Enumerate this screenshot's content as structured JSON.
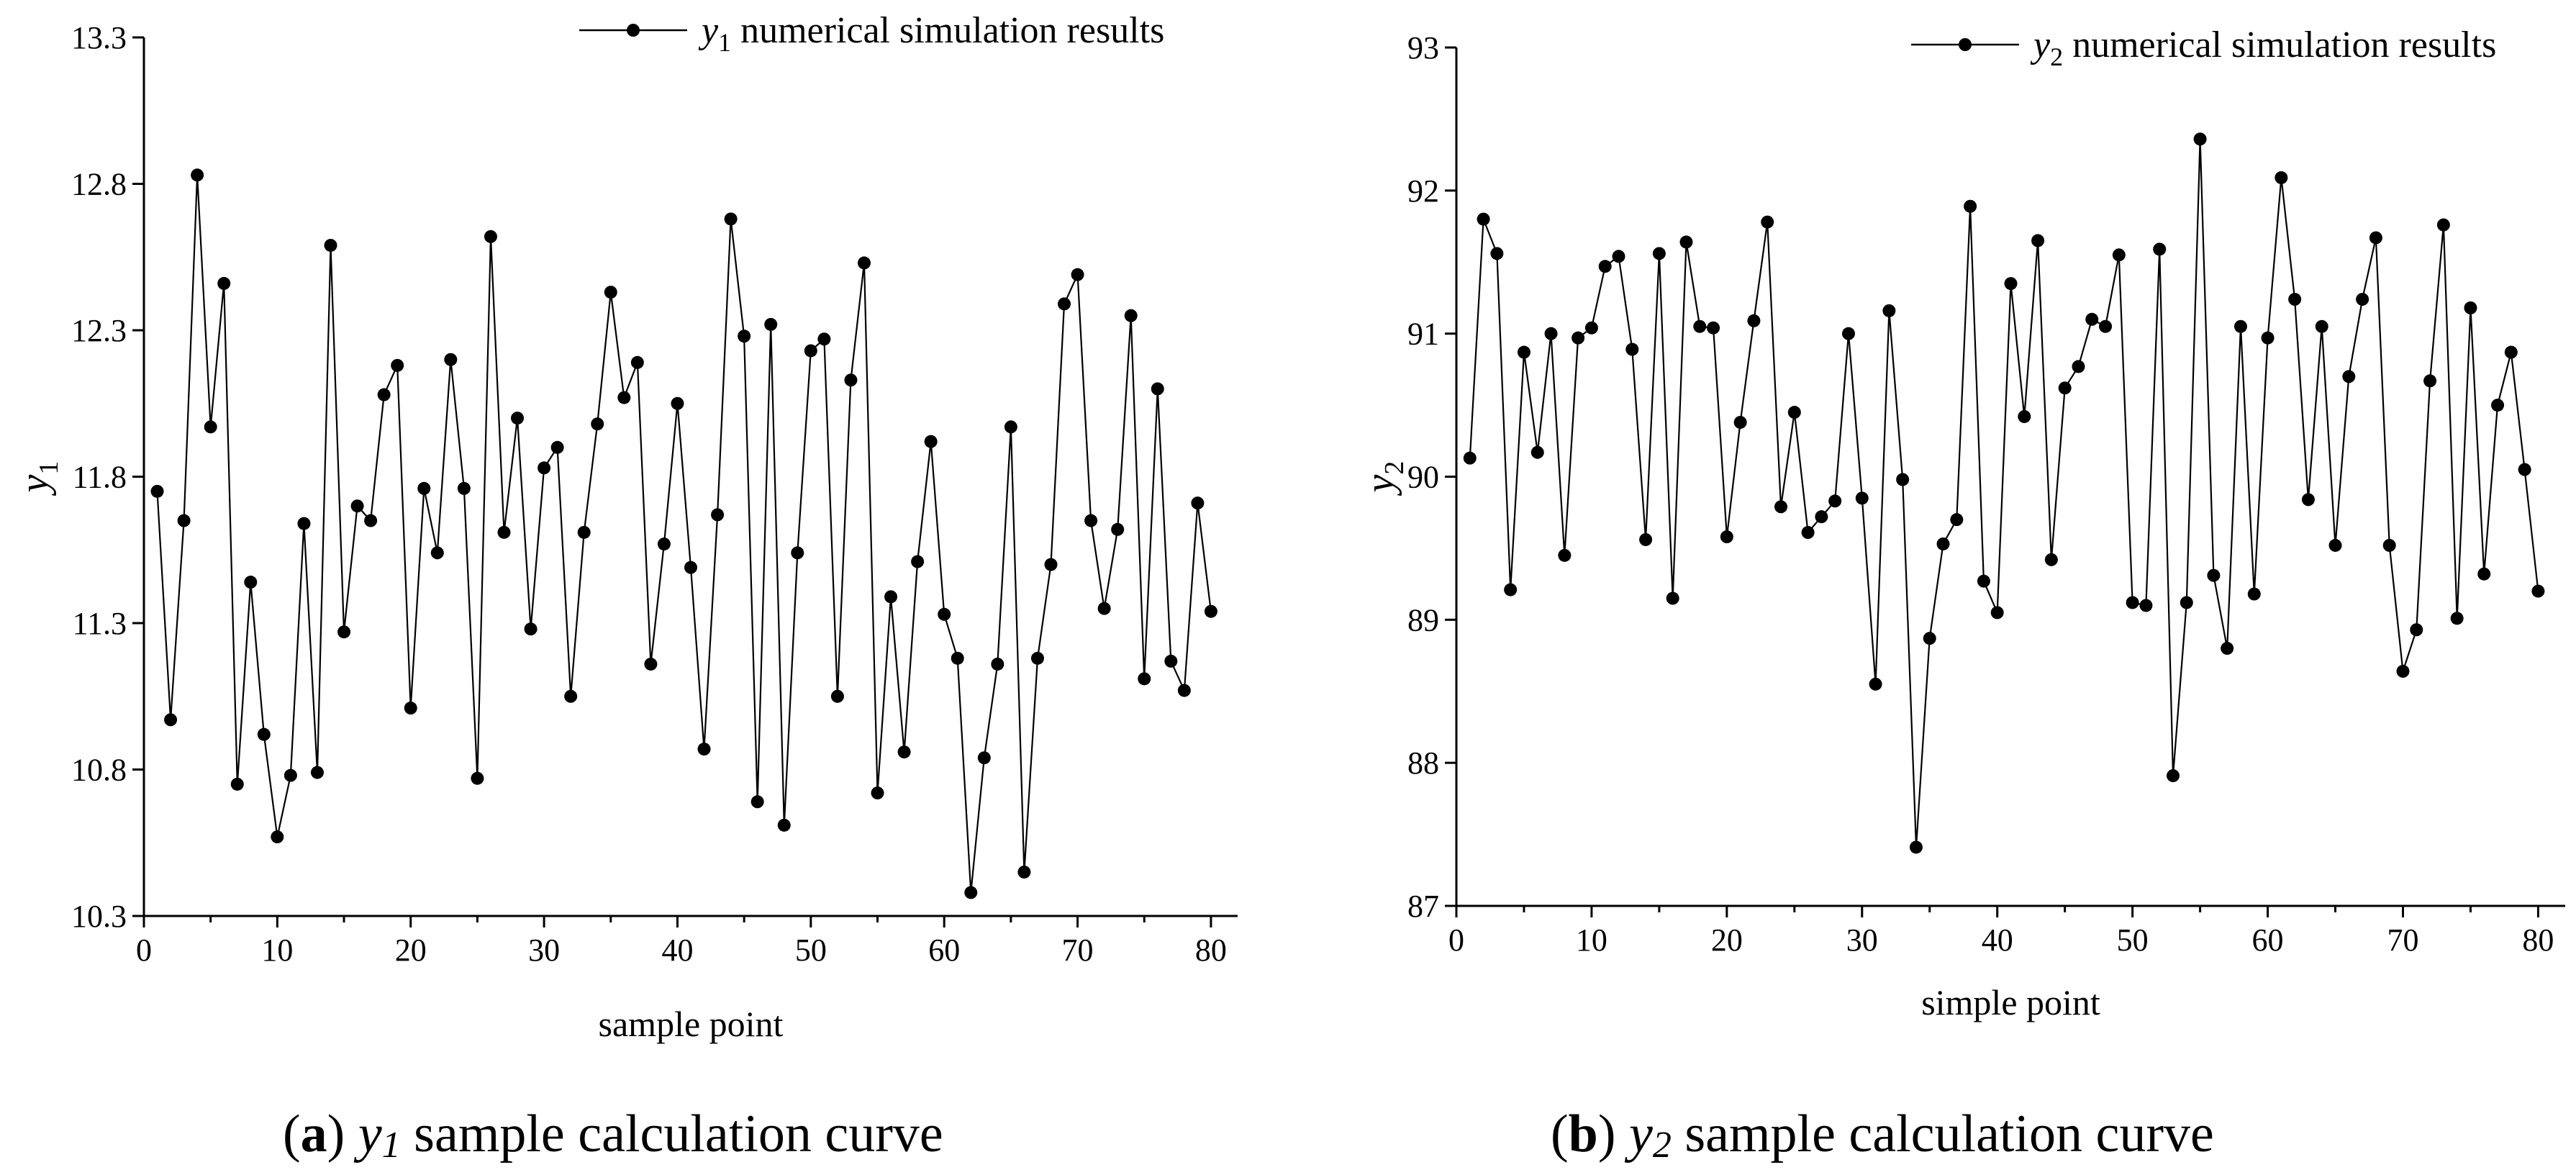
{
  "chart_data": [
    {
      "type": "line",
      "xlabel": "sample point",
      "ylabel": {
        "var": "y",
        "sub": "1"
      },
      "xlim": [
        0,
        82
      ],
      "ylim": [
        10.3,
        13.3
      ],
      "xticks": [
        "0",
        "10",
        "20",
        "30",
        "40",
        "50",
        "60",
        "70",
        "80"
      ],
      "yticks": [
        "10.3",
        "10.8",
        "11.3",
        "11.8",
        "12.3",
        "12.8",
        "13.3"
      ],
      "legend": {
        "var": "y",
        "sub": "1",
        "text": " numerical simulation results",
        "placement": "top-right"
      },
      "caption": {
        "label": "a",
        "var": "y",
        "sub": "1",
        "text": " sample calculation curve"
      },
      "series": [
        {
          "x": [
            1,
            2,
            3,
            4,
            5,
            6,
            7,
            8,
            9,
            10,
            11,
            12,
            13,
            14,
            15,
            16,
            17,
            18,
            19,
            20,
            21,
            22,
            23,
            24,
            25,
            26,
            27,
            28,
            29,
            30,
            31,
            32,
            33,
            34,
            35,
            36,
            37,
            38,
            39,
            40,
            41,
            42,
            43,
            44,
            45,
            46,
            47,
            48,
            49,
            50,
            51,
            52,
            53,
            54,
            55,
            56,
            57,
            58,
            59,
            60,
            61,
            62,
            63,
            64,
            65,
            66,
            67,
            68,
            69,
            70,
            71,
            72,
            73,
            74,
            75,
            76,
            77,
            78,
            79,
            80
          ],
          "values": [
            11.75,
            10.97,
            11.65,
            12.83,
            11.97,
            12.46,
            10.75,
            11.44,
            10.92,
            10.57,
            10.78,
            11.64,
            10.79,
            12.59,
            11.27,
            11.7,
            11.65,
            12.08,
            12.18,
            11.01,
            11.76,
            11.54,
            12.2,
            11.76,
            10.77,
            12.62,
            11.61,
            12.0,
            11.28,
            11.83,
            11.9,
            11.05,
            11.61,
            11.98,
            12.43,
            12.07,
            12.19,
            11.16,
            11.57,
            12.05,
            11.49,
            10.87,
            11.67,
            12.68,
            12.28,
            10.69,
            12.32,
            10.61,
            11.54,
            12.23,
            12.27,
            11.05,
            12.13,
            12.53,
            10.72,
            11.39,
            10.86,
            11.51,
            11.92,
            11.33,
            11.18,
            10.38,
            10.84,
            11.16,
            11.97,
            10.45,
            11.18,
            11.5,
            12.39,
            12.49,
            11.65,
            11.35,
            11.62,
            12.35,
            11.11,
            12.1,
            11.17,
            11.07,
            11.71,
            11.34
          ]
        }
      ]
    },
    {
      "type": "line",
      "xlabel": "simple point",
      "ylabel": {
        "var": "y",
        "sub": "2"
      },
      "xlim": [
        0,
        82
      ],
      "ylim": [
        87,
        93
      ],
      "xticks": [
        "0",
        "10",
        "20",
        "30",
        "40",
        "50",
        "60",
        "70",
        "80"
      ],
      "yticks": [
        "87",
        "88",
        "89",
        "90",
        "91",
        "92",
        "93"
      ],
      "legend": {
        "var": "y",
        "sub": "2",
        "text": " numerical simulation results",
        "placement": "top-right"
      },
      "caption": {
        "label": "b",
        "var": "y",
        "sub": "2",
        "text": " sample calculation curve"
      },
      "series": [
        {
          "x": [
            1,
            2,
            3,
            4,
            5,
            6,
            7,
            8,
            9,
            10,
            11,
            12,
            13,
            14,
            15,
            16,
            17,
            18,
            19,
            20,
            21,
            22,
            23,
            24,
            25,
            26,
            27,
            28,
            29,
            30,
            31,
            32,
            33,
            34,
            35,
            36,
            37,
            38,
            39,
            40,
            41,
            42,
            43,
            44,
            45,
            46,
            47,
            48,
            49,
            50,
            51,
            52,
            53,
            54,
            55,
            56,
            57,
            58,
            59,
            60,
            61,
            62,
            63,
            64,
            65,
            66,
            67,
            68,
            69,
            70,
            71,
            72,
            73,
            74,
            75,
            76,
            77,
            78,
            79,
            80
          ],
          "values": [
            90.13,
            91.8,
            91.56,
            89.21,
            90.87,
            90.17,
            91.0,
            89.45,
            90.97,
            91.04,
            91.47,
            91.54,
            90.89,
            89.56,
            91.56,
            89.15,
            91.64,
            91.05,
            91.04,
            89.58,
            90.38,
            91.09,
            91.78,
            89.79,
            90.45,
            89.61,
            89.72,
            89.83,
            91.0,
            89.85,
            88.55,
            91.16,
            89.98,
            87.41,
            88.87,
            89.53,
            89.7,
            91.89,
            89.27,
            89.05,
            91.35,
            90.42,
            91.65,
            89.42,
            90.62,
            90.77,
            91.1,
            91.05,
            91.55,
            89.12,
            89.1,
            91.59,
            87.91,
            89.12,
            92.36,
            89.31,
            88.8,
            91.05,
            89.18,
            90.97,
            92.09,
            91.24,
            89.84,
            91.05,
            89.52,
            90.7,
            91.24,
            91.67,
            89.52,
            88.64,
            88.93,
            90.67,
            91.76,
            89.01,
            91.18,
            89.32,
            90.5,
            90.87,
            90.05,
            89.2
          ]
        }
      ]
    }
  ]
}
